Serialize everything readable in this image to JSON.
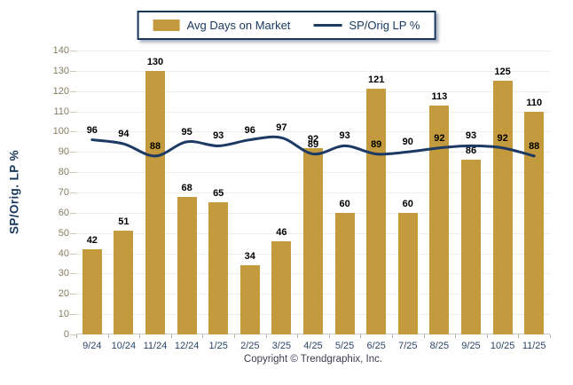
{
  "legend": {
    "bar_label": "Avg Days on Market",
    "line_label": "SP/Orig LP %"
  },
  "y_axis": {
    "title": "SP/Orig. LP %"
  },
  "footer": {
    "copyright": "Copyright © Trendgraphix, Inc."
  },
  "colors": {
    "bar": "#C49A3E",
    "line": "#1C3A63",
    "legend_border": "#17375D",
    "legend_text": "#17375D",
    "gridline": "#EDEDED",
    "y_tick_text": "#857C5F",
    "x_tick_text": "#2B4668",
    "data_label_text": "#000000"
  },
  "chart_data": {
    "type": "bar+line",
    "title": "",
    "xlabel": "",
    "ylabel": "SP/Orig. LP %",
    "ylim": [
      0,
      140
    ],
    "ytick_step": 10,
    "grid": true,
    "legend_position": "top-center",
    "data_labels": true,
    "categories": [
      "9/24",
      "10/24",
      "11/24",
      "12/24",
      "1/25",
      "2/25",
      "3/25",
      "4/25",
      "5/25",
      "6/25",
      "7/25",
      "8/25",
      "9/25",
      "10/25",
      "11/25"
    ],
    "series": [
      {
        "name": "Avg Days on Market",
        "type": "bar",
        "values": [
          42,
          51,
          130,
          68,
          65,
          34,
          46,
          92,
          60,
          121,
          60,
          113,
          86,
          125,
          110
        ]
      },
      {
        "name": "SP/Orig LP %",
        "type": "line",
        "values": [
          96,
          94,
          88,
          95,
          93,
          96,
          97,
          89,
          93,
          89,
          90,
          92,
          93,
          92,
          88
        ]
      }
    ]
  }
}
